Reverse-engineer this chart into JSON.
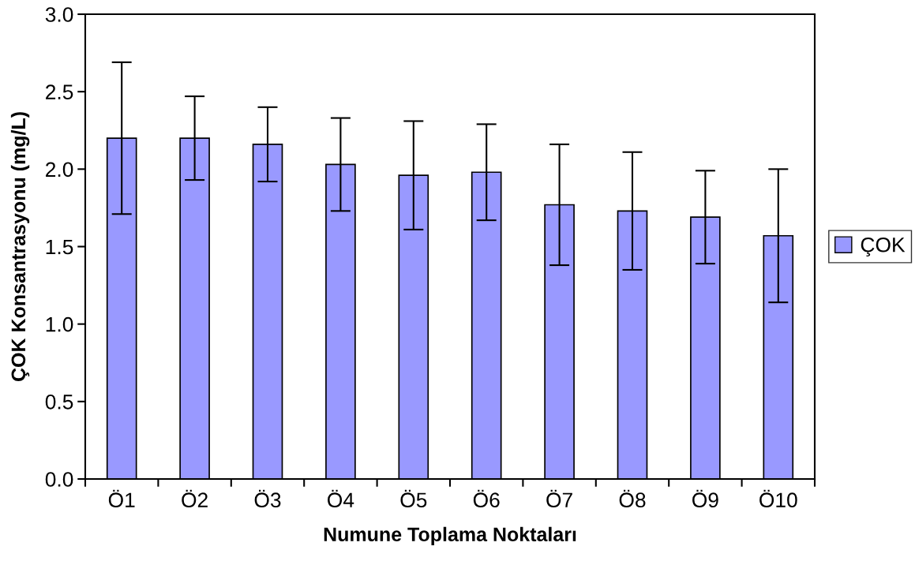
{
  "chart_data": {
    "type": "bar",
    "xlabel": "Numune Toplama Noktaları",
    "ylabel": "ÇOK Konsantrasyonu (mg/L)",
    "categories": [
      "Ö1",
      "Ö2",
      "Ö3",
      "Ö4",
      "Ö5",
      "Ö6",
      "Ö7",
      "Ö8",
      "Ö9",
      "Ö10"
    ],
    "series": [
      {
        "name": "ÇOK",
        "color": "#9999ff",
        "values": [
          2.2,
          2.2,
          2.16,
          2.03,
          1.96,
          1.98,
          1.77,
          1.73,
          1.69,
          1.57
        ],
        "errors": [
          0.49,
          0.27,
          0.24,
          0.3,
          0.35,
          0.31,
          0.39,
          0.38,
          0.3,
          0.43
        ]
      }
    ],
    "ylim": [
      0,
      3.0
    ],
    "yticks": [
      {
        "value": 0,
        "label": "0.0"
      },
      {
        "value": 0.5,
        "label": "0.5"
      },
      {
        "value": 1.0,
        "label": "1.0"
      },
      {
        "value": 1.5,
        "label": "1.5"
      },
      {
        "value": 2.0,
        "label": "2.0"
      },
      {
        "value": 2.5,
        "label": "2.5"
      },
      {
        "value": 3.0,
        "label": "3.0"
      }
    ],
    "grid": false,
    "legend": "right"
  }
}
